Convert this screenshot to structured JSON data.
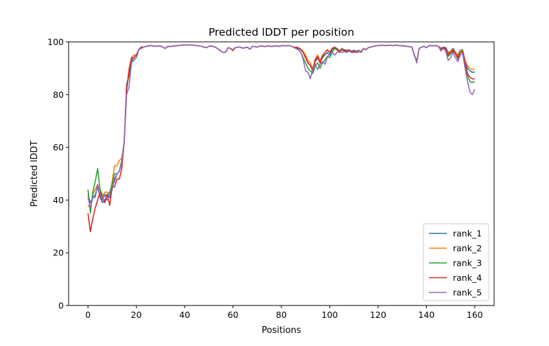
{
  "chart_data": {
    "type": "line",
    "title": "Predicted lDDT per position",
    "xlabel": "Positions",
    "ylabel": "Predicted lDDT",
    "xlim": [
      -8,
      168
    ],
    "ylim": [
      0,
      100
    ],
    "xticks": [
      0,
      20,
      40,
      60,
      80,
      100,
      120,
      140,
      160
    ],
    "yticks": [
      0,
      20,
      40,
      60,
      80,
      100
    ],
    "xtick_labels": [
      "0",
      "20",
      "40",
      "60",
      "80",
      "100",
      "120",
      "140",
      "160"
    ],
    "ytick_labels": [
      "0",
      "20",
      "40",
      "60",
      "80",
      "100"
    ],
    "grid": false,
    "legend_position": "bottom-right",
    "x_start": 0,
    "x_step": 1,
    "series": [
      {
        "name": "rank_1",
        "color": "#1f77b4",
        "values": [
          42,
          39,
          41,
          42,
          45,
          41,
          39,
          40,
          42,
          41,
          44,
          48,
          50,
          51,
          55,
          62,
          84,
          87,
          93,
          94,
          95,
          97,
          98,
          98,
          98.3,
          98.5,
          98.6,
          98.5,
          98.3,
          98.5,
          98.4,
          98,
          97.5,
          98.3,
          98.2,
          98.4,
          98.5,
          98.6,
          98.7,
          98.8,
          98.8,
          98.8,
          98.8,
          98.8,
          98.7,
          98.6,
          98.5,
          98.3,
          98,
          97.8,
          98.3,
          98.5,
          98.2,
          97.8,
          97.2,
          96.5,
          96,
          96.2,
          97.8,
          97.5,
          97,
          97.8,
          98,
          98,
          97.6,
          97.8,
          98,
          97.2,
          98.3,
          98.2,
          98,
          98.4,
          98.5,
          98.2,
          98.4,
          98.5,
          98.2,
          98.5,
          98.5,
          98.3,
          98.5,
          98.6,
          98.5,
          98.6,
          98.4,
          98,
          97.8,
          97.5,
          97,
          96,
          94,
          92,
          91,
          89,
          92.5,
          94,
          92,
          94,
          95,
          96,
          95,
          97,
          98,
          97.5,
          96.5,
          97.5,
          97,
          96.8,
          97,
          96.5,
          96.8,
          96.5,
          96.8,
          96.3,
          97.5,
          97,
          97.8,
          98,
          98.3,
          98.5,
          98.6,
          98.7,
          98.7,
          98.6,
          98.7,
          98.7,
          98.6,
          98.7,
          98.7,
          98.6,
          98.5,
          98.4,
          98.3,
          98.2,
          98,
          95,
          92.5,
          97.5,
          98,
          98.3,
          97.8,
          98.5,
          98.6,
          98.5,
          98.6,
          98.3,
          97.5,
          98,
          97.8,
          96,
          96.5,
          97.5,
          96.2,
          95,
          96.8,
          97,
          93,
          90,
          89,
          88.5,
          88.5
        ]
      },
      {
        "name": "rank_2",
        "color": "#ff7f0e",
        "values": [
          38,
          37,
          42,
          44,
          46,
          42,
          41,
          43,
          43,
          42,
          47,
          53,
          53,
          55,
          56,
          62,
          82,
          90,
          94,
          95,
          95,
          97,
          98,
          98,
          98.3,
          98.5,
          98.6,
          98.5,
          98.3,
          98.5,
          98.4,
          98,
          97.5,
          98.3,
          98.2,
          98.4,
          98.5,
          98.6,
          98.7,
          98.8,
          98.8,
          98.8,
          98.8,
          98.8,
          98.7,
          98.6,
          98.5,
          98.3,
          98,
          97.8,
          98.3,
          98.5,
          98.2,
          97.8,
          97.2,
          96.5,
          96,
          96.2,
          97.8,
          97.5,
          96.5,
          97.8,
          98,
          98,
          97.6,
          97.8,
          98,
          97.2,
          98.3,
          98.2,
          98,
          98.4,
          98.5,
          98.2,
          98.4,
          98.5,
          98.2,
          98.5,
          98.5,
          98.3,
          98.5,
          98.6,
          98.5,
          98.6,
          98.4,
          98,
          98,
          97.8,
          97.2,
          96.5,
          95,
          93,
          92,
          90,
          93.5,
          95,
          93,
          95,
          96,
          97,
          96,
          97.5,
          97.8,
          97,
          96.8,
          97.2,
          96.8,
          96.5,
          96.8,
          96.5,
          96.5,
          96.2,
          96.5,
          96.5,
          97.5,
          97,
          97.8,
          98,
          98.3,
          98.5,
          98.6,
          98.7,
          98.7,
          98.6,
          98.7,
          98.7,
          98.6,
          98.7,
          98.7,
          98.6,
          98.5,
          98.4,
          98.3,
          98.2,
          98,
          95,
          92.5,
          97.5,
          98,
          98.3,
          97.8,
          98.5,
          98.6,
          98.5,
          98.6,
          98.3,
          97.2,
          97.8,
          97.5,
          95.5,
          96.5,
          97.2,
          96,
          94.5,
          96.5,
          96.8,
          93,
          91,
          90,
          89.5,
          89.5
        ]
      },
      {
        "name": "rank_3",
        "color": "#2ca02c",
        "values": [
          44,
          35,
          43,
          47,
          52,
          44,
          42,
          42,
          42,
          43,
          46,
          50,
          50,
          51,
          55,
          62,
          82,
          88,
          93,
          93,
          94,
          97,
          98,
          98,
          98.3,
          98.5,
          98.6,
          98.5,
          98.3,
          98.5,
          98.4,
          98,
          97.5,
          98.3,
          98.2,
          98.4,
          98.5,
          98.6,
          98.7,
          98.8,
          98.8,
          98.8,
          98.8,
          98.8,
          98.7,
          98.6,
          98.5,
          98.3,
          98,
          97.8,
          98.3,
          98.5,
          98.2,
          97.8,
          97.2,
          96.5,
          96,
          96.2,
          97.8,
          97.5,
          97,
          97.8,
          98,
          98,
          97.6,
          97.8,
          98,
          97.2,
          98.3,
          98.2,
          98,
          98.4,
          98.5,
          98.2,
          98.4,
          98.5,
          98.2,
          98.5,
          98.5,
          98.3,
          98.5,
          98.6,
          98.5,
          98.6,
          98.4,
          98,
          97.5,
          97,
          96,
          94,
          92,
          90,
          89,
          88,
          91,
          92,
          90,
          92,
          93,
          94.5,
          94,
          96,
          97.5,
          97,
          96,
          97,
          96.5,
          96.3,
          96.5,
          96,
          96.3,
          96,
          96.3,
          96,
          97.5,
          97,
          97.8,
          98,
          98.3,
          98.5,
          98.6,
          98.7,
          98.7,
          98.6,
          98.7,
          98.7,
          98.6,
          98.7,
          98.7,
          98.6,
          98.5,
          98.4,
          98.3,
          98.2,
          98,
          95,
          92.5,
          97.5,
          98,
          98.3,
          97.8,
          98.5,
          98.6,
          98.5,
          98.6,
          98.3,
          97,
          97.5,
          97.2,
          94.5,
          95.5,
          96.5,
          95.5,
          93.5,
          96,
          96.5,
          92,
          87,
          85,
          84.5,
          85
        ]
      },
      {
        "name": "rank_4",
        "color": "#d62728",
        "values": [
          35,
          28,
          33,
          37,
          40,
          43,
          41,
          39,
          42,
          38,
          45,
          45,
          48,
          48,
          52,
          62,
          82,
          89,
          94,
          94,
          95,
          97,
          98,
          98,
          98.3,
          98.5,
          98.6,
          98.5,
          98.3,
          98.5,
          98.4,
          98,
          97.5,
          98.3,
          98.2,
          98.4,
          98.5,
          98.6,
          98.7,
          98.8,
          98.8,
          98.8,
          98.8,
          98.8,
          98.7,
          98.6,
          98.5,
          98.3,
          98,
          97.8,
          98.3,
          98.5,
          98.2,
          97.8,
          97.2,
          96.5,
          96,
          96.2,
          97.8,
          97.5,
          97,
          97.8,
          98,
          98,
          97.6,
          97.8,
          98,
          97.2,
          98.3,
          98.2,
          98,
          98.4,
          98.5,
          98.2,
          98.4,
          98.5,
          98.2,
          98.5,
          98.5,
          98.3,
          98.5,
          98.6,
          98.5,
          98.6,
          98.4,
          98,
          98,
          97.8,
          97.2,
          96,
          94,
          92,
          91,
          89,
          93,
          94.5,
          92,
          94.5,
          96,
          97,
          96,
          97.5,
          98,
          97,
          96.5,
          97,
          96.8,
          96.5,
          96.8,
          96.3,
          96.5,
          96,
          96.3,
          96,
          97.5,
          97,
          97.8,
          98,
          98.3,
          98.5,
          98.6,
          98.7,
          98.7,
          98.6,
          98.7,
          98.7,
          98.6,
          98.7,
          98.7,
          98.6,
          98.5,
          98.4,
          98.3,
          98.2,
          98,
          95,
          92.5,
          97.5,
          98,
          98.3,
          97.8,
          98.5,
          98.6,
          98.5,
          98.6,
          98.3,
          97.5,
          97.8,
          97.5,
          95,
          96,
          97,
          95.5,
          94,
          96,
          96,
          92,
          88,
          86.5,
          86,
          86
        ]
      },
      {
        "name": "rank_5",
        "color": "#9467bd",
        "values": [
          41,
          37,
          41,
          41,
          46,
          42,
          40,
          42,
          40,
          42,
          45,
          47,
          50,
          51,
          54,
          62,
          80,
          83,
          92,
          93,
          94,
          97,
          97.5,
          98,
          98.3,
          98.5,
          98.6,
          98.5,
          98.3,
          98.5,
          98.4,
          98,
          97.5,
          98.3,
          98.2,
          98.4,
          98.5,
          98.6,
          98.7,
          98.8,
          98.8,
          98.8,
          98.8,
          98.8,
          98.7,
          98.6,
          98.5,
          98.3,
          98,
          97.8,
          98.3,
          98.5,
          98.2,
          97.8,
          97.2,
          96.5,
          96,
          96.2,
          97.8,
          97.5,
          97,
          97.8,
          98,
          98,
          97.6,
          97.8,
          98,
          97.2,
          98.3,
          98.2,
          98,
          98.4,
          98.5,
          98.2,
          98.4,
          98.5,
          98.2,
          98.5,
          98.5,
          98.3,
          98.5,
          98.6,
          98.5,
          98.6,
          98.4,
          98,
          97.5,
          97,
          96,
          93.5,
          89,
          88.5,
          86,
          90,
          91.5,
          89.5,
          91.5,
          92.5,
          91.5,
          94,
          95.5,
          96,
          95,
          96,
          96.2,
          96,
          96.3,
          96,
          96.5,
          96,
          96,
          96.5,
          96.3,
          96,
          97.5,
          97,
          97.8,
          98,
          98.3,
          98.5,
          98.6,
          98.7,
          98.7,
          98.6,
          98.7,
          98.7,
          98.6,
          98.7,
          98.7,
          98.6,
          98.5,
          98.4,
          98.3,
          98.2,
          98,
          95,
          92,
          97.5,
          98,
          98.3,
          97.8,
          98.5,
          98.6,
          98.5,
          98.6,
          98.3,
          96.5,
          97.5,
          96.5,
          93,
          94,
          96,
          94,
          92.5,
          95,
          95.5,
          90,
          85,
          81,
          80,
          82
        ]
      }
    ]
  }
}
